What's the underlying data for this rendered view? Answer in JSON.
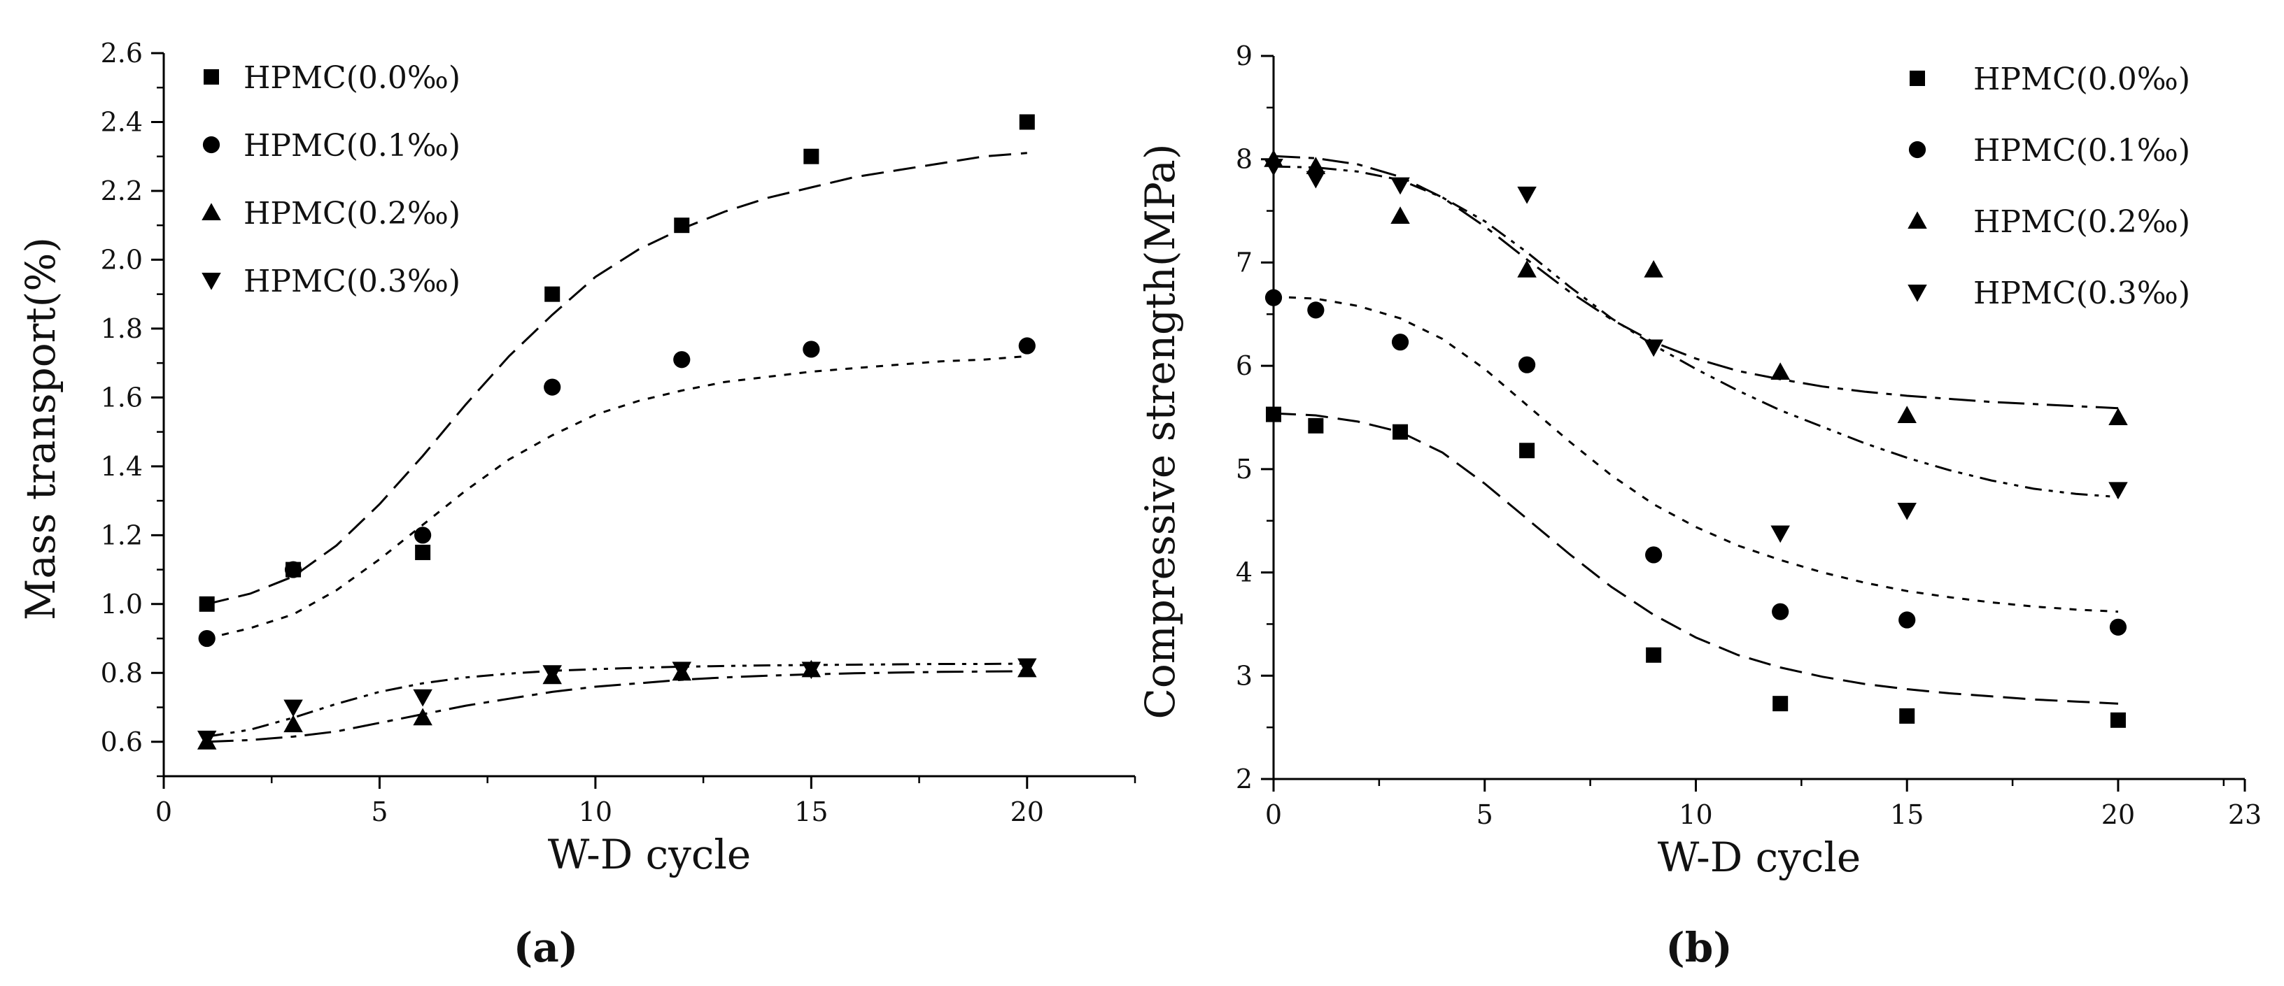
{
  "chart_data": [
    {
      "type": "scatter",
      "panel_label": "(a)",
      "xlabel": "W-D cycle",
      "ylabel": "Mass transport(%)",
      "xlim": [
        0,
        22.5
      ],
      "ylim": [
        0.5,
        2.6
      ],
      "xticks": [
        0,
        5,
        10,
        15,
        20
      ],
      "yticks": [
        0.6,
        0.8,
        1.0,
        1.2,
        1.4,
        1.6,
        1.8,
        2.0,
        2.2,
        2.4,
        2.6
      ],
      "ytick_labels": [
        "0.6",
        "0.8",
        "1.0",
        "1.2",
        "1.4",
        "1.6",
        "1.8",
        "2.0",
        "2.2",
        "2.4",
        "2.6"
      ],
      "legend_position": "top-left",
      "grid": false,
      "series": [
        {
          "name": "HPMC(0.0‰)",
          "marker": "square",
          "x": [
            1,
            3,
            6,
            9,
            12,
            15,
            20
          ],
          "y": [
            1.0,
            1.1,
            1.15,
            1.9,
            2.1,
            2.3,
            2.4
          ],
          "fit": {
            "x": [
              1,
              2,
              3,
              4,
              5,
              6,
              7,
              8,
              9,
              10,
              11,
              12,
              13,
              14,
              15,
              16,
              17,
              18,
              19,
              20
            ],
            "y": [
              1.0,
              1.03,
              1.08,
              1.17,
              1.29,
              1.43,
              1.58,
              1.72,
              1.84,
              1.95,
              2.03,
              2.09,
              2.14,
              2.18,
              2.21,
              2.24,
              2.26,
              2.28,
              2.3,
              2.31
            ]
          }
        },
        {
          "name": "HPMC(0.1‰)",
          "marker": "circle",
          "x": [
            1,
            3,
            6,
            9,
            12,
            15,
            20
          ],
          "y": [
            0.9,
            1.1,
            1.2,
            1.63,
            1.71,
            1.74,
            1.75
          ],
          "fit": {
            "x": [
              1,
              2,
              3,
              4,
              5,
              6,
              7,
              8,
              9,
              10,
              11,
              12,
              13,
              14,
              15,
              16,
              17,
              18,
              19,
              20
            ],
            "y": [
              0.9,
              0.93,
              0.97,
              1.04,
              1.13,
              1.23,
              1.33,
              1.42,
              1.49,
              1.55,
              1.59,
              1.62,
              1.645,
              1.66,
              1.675,
              1.685,
              1.695,
              1.705,
              1.71,
              1.72
            ]
          }
        },
        {
          "name": "HPMC(0.2‰)",
          "marker": "triangle-up",
          "x": [
            1,
            3,
            6,
            9,
            12,
            15,
            20
          ],
          "y": [
            0.6,
            0.65,
            0.67,
            0.79,
            0.8,
            0.81,
            0.81
          ],
          "fit": {
            "x": [
              1,
              2,
              3,
              4,
              5,
              6,
              7,
              8,
              9,
              10,
              11,
              12,
              13,
              14,
              15,
              16,
              17,
              18,
              19,
              20
            ],
            "y": [
              0.6,
              0.605,
              0.615,
              0.63,
              0.655,
              0.68,
              0.705,
              0.725,
              0.745,
              0.76,
              0.77,
              0.78,
              0.787,
              0.792,
              0.796,
              0.799,
              0.801,
              0.803,
              0.804,
              0.805
            ]
          }
        },
        {
          "name": "HPMC(0.3‰)",
          "marker": "triangle-down",
          "x": [
            1,
            3,
            6,
            9,
            12,
            15,
            20
          ],
          "y": [
            0.61,
            0.7,
            0.73,
            0.8,
            0.81,
            0.81,
            0.82
          ],
          "fit": {
            "x": [
              1,
              2,
              3,
              4,
              5,
              6,
              7,
              8,
              9,
              10,
              11,
              12,
              13,
              14,
              15,
              16,
              17,
              18,
              19,
              20
            ],
            "y": [
              0.615,
              0.635,
              0.67,
              0.71,
              0.745,
              0.77,
              0.787,
              0.798,
              0.806,
              0.811,
              0.815,
              0.818,
              0.82,
              0.822,
              0.823,
              0.824,
              0.825,
              0.826,
              0.826,
              0.827
            ]
          }
        }
      ]
    },
    {
      "type": "scatter",
      "panel_label": "(b)",
      "xlabel": "W-D cycle",
      "ylabel": "Compressive strength(MPa)",
      "xlim": [
        0,
        23
      ],
      "ylim": [
        2,
        9
      ],
      "xticks": [
        0,
        5,
        10,
        15,
        20,
        23
      ],
      "yticks": [
        2,
        3,
        4,
        5,
        6,
        7,
        8,
        9
      ],
      "ytick_labels": [
        "2",
        "3",
        "4",
        "5",
        "6",
        "7",
        "8",
        "9"
      ],
      "legend_position": "top-right",
      "grid": false,
      "series": [
        {
          "name": "HPMC(0.0‰)",
          "marker": "square",
          "x": [
            0,
            1,
            3,
            6,
            9,
            12,
            15,
            20
          ],
          "y": [
            5.53,
            5.42,
            5.36,
            5.18,
            3.2,
            2.73,
            2.61,
            2.57
          ],
          "fit": {
            "x": [
              0,
              1,
              2,
              3,
              4,
              5,
              6,
              7,
              8,
              9,
              10,
              11,
              12,
              13,
              14,
              15,
              16,
              17,
              18,
              19,
              20
            ],
            "y": [
              5.54,
              5.52,
              5.46,
              5.36,
              5.16,
              4.86,
              4.52,
              4.18,
              3.86,
              3.59,
              3.37,
              3.2,
              3.08,
              2.99,
              2.92,
              2.87,
              2.83,
              2.8,
              2.77,
              2.75,
              2.73
            ]
          }
        },
        {
          "name": "HPMC(0.1‰)",
          "marker": "circle",
          "x": [
            0,
            1,
            3,
            6,
            9,
            12,
            15,
            20
          ],
          "y": [
            6.66,
            6.54,
            6.23,
            6.01,
            4.17,
            3.62,
            3.54,
            3.47
          ],
          "fit": {
            "x": [
              0,
              1,
              2,
              3,
              4,
              5,
              6,
              7,
              8,
              9,
              10,
              11,
              12,
              13,
              14,
              15,
              16,
              17,
              18,
              19,
              20
            ],
            "y": [
              6.67,
              6.65,
              6.58,
              6.46,
              6.26,
              5.97,
              5.62,
              5.27,
              4.94,
              4.66,
              4.44,
              4.26,
              4.12,
              4.0,
              3.9,
              3.82,
              3.76,
              3.71,
              3.67,
              3.64,
              3.62
            ]
          }
        },
        {
          "name": "HPMC(0.2‰)",
          "marker": "triangle-up",
          "x": [
            0,
            1,
            3,
            6,
            9,
            12,
            15,
            20
          ],
          "y": [
            8.0,
            7.93,
            7.45,
            6.93,
            6.93,
            5.94,
            5.52,
            5.5
          ],
          "fit": {
            "x": [
              0,
              1,
              2,
              3,
              4,
              5,
              6,
              7,
              8,
              9,
              10,
              11,
              12,
              13,
              14,
              15,
              16,
              17,
              18,
              19,
              20
            ],
            "y": [
              8.03,
              8.01,
              7.95,
              7.83,
              7.63,
              7.35,
              7.03,
              6.72,
              6.45,
              6.23,
              6.07,
              5.95,
              5.87,
              5.8,
              5.75,
              5.71,
              5.68,
              5.65,
              5.63,
              5.61,
              5.59
            ]
          }
        },
        {
          "name": "HPMC(0.3‰)",
          "marker": "triangle-down",
          "x": [
            0,
            1,
            3,
            6,
            9,
            12,
            15,
            20
          ],
          "y": [
            7.93,
            7.81,
            7.75,
            7.66,
            6.18,
            4.38,
            4.6,
            4.8
          ],
          "fit": {
            "x": [
              0,
              1,
              2,
              3,
              4,
              5,
              6,
              7,
              8,
              9,
              10,
              11,
              12,
              13,
              14,
              15,
              16,
              17,
              18,
              19,
              20
            ],
            "y": [
              7.93,
              7.92,
              7.88,
              7.8,
              7.63,
              7.4,
              7.1,
              6.77,
              6.46,
              6.2,
              5.97,
              5.76,
              5.57,
              5.41,
              5.25,
              5.11,
              4.99,
              4.89,
              4.81,
              4.76,
              4.73
            ]
          }
        }
      ]
    }
  ]
}
